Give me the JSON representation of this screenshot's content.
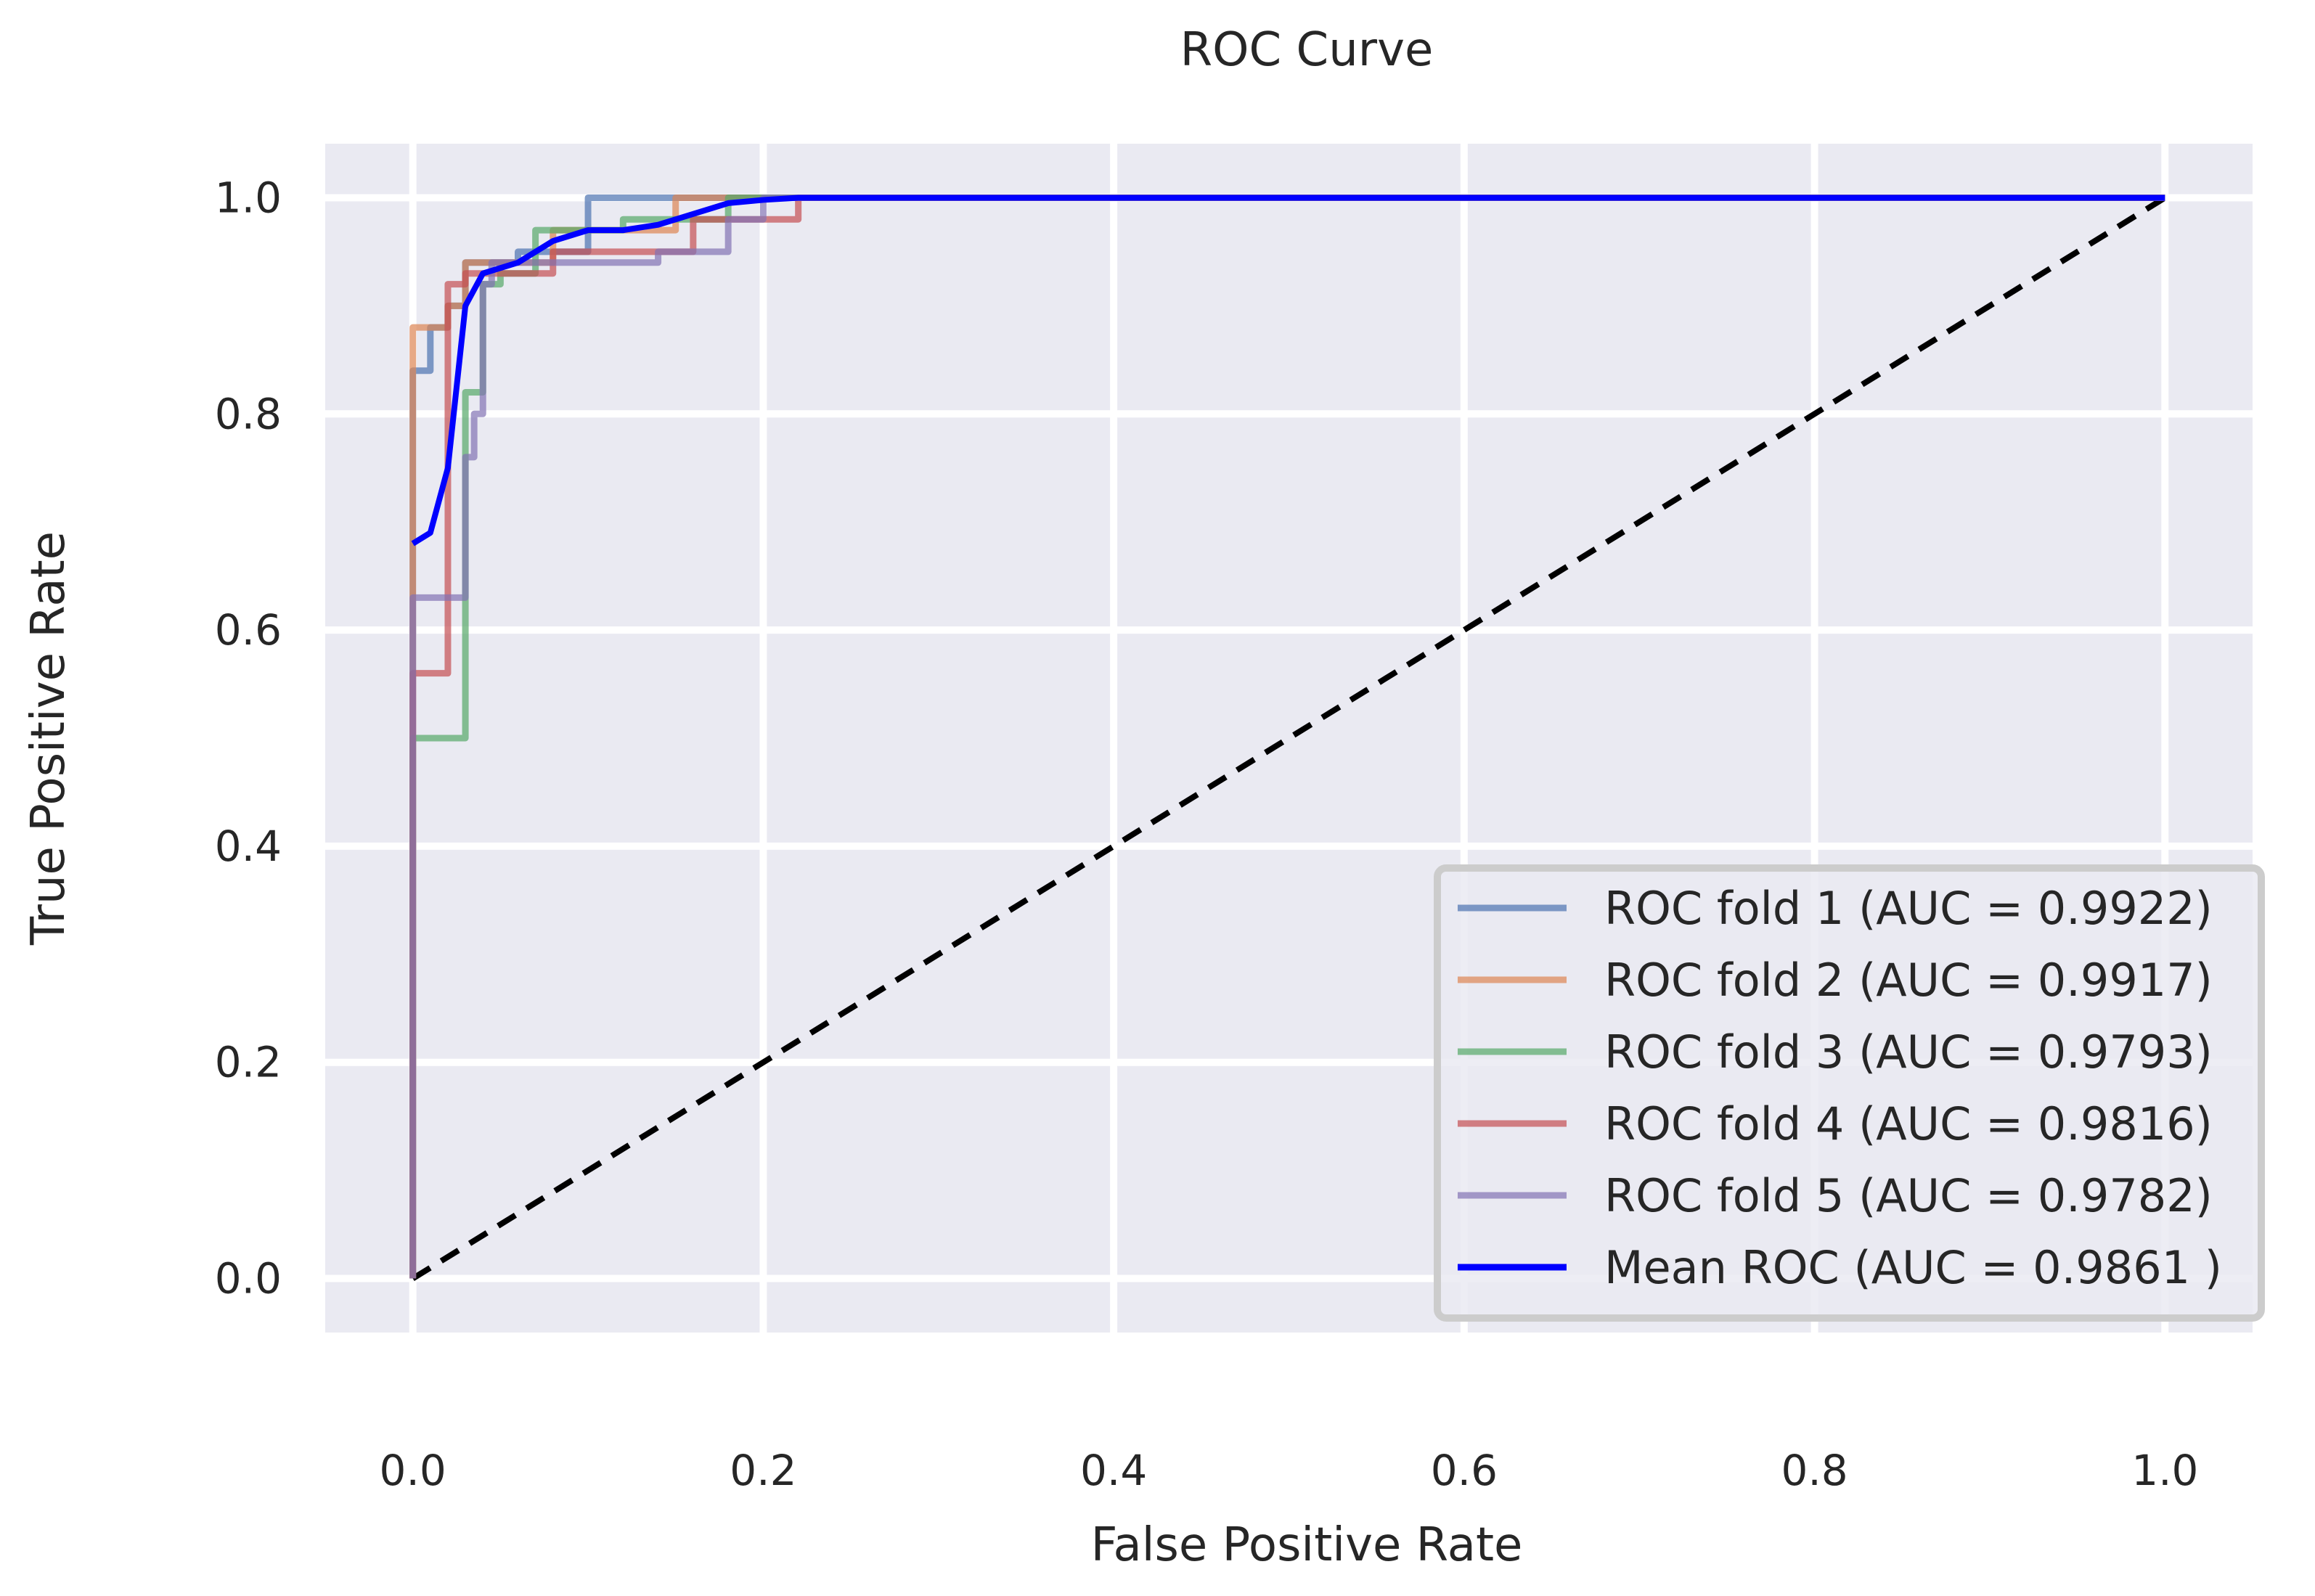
{
  "chart_data": {
    "type": "line",
    "title": "ROC Curve",
    "xlabel": "False Positive Rate",
    "ylabel": "True Positive Rate",
    "xlim": [
      -0.05,
      1.05
    ],
    "ylim": [
      -0.05,
      1.05
    ],
    "xticks": [
      0.0,
      0.2,
      0.4,
      0.6,
      0.8,
      1.0
    ],
    "yticks": [
      0.0,
      0.2,
      0.4,
      0.6,
      0.8,
      1.0
    ],
    "tick_labels_x": [
      "0.0",
      "0.2",
      "0.4",
      "0.6",
      "0.8",
      "1.0"
    ],
    "tick_labels_y": [
      "0.0",
      "0.2",
      "0.4",
      "0.6",
      "0.8",
      "1.0"
    ],
    "grid": true,
    "legend_position": "lower-right",
    "series": [
      {
        "name": "ROC fold 1 (AUC = 0.9922)",
        "color": "#4c72b0",
        "opacity": 0.7,
        "x": [
          0,
          0,
          0.01,
          0.01,
          0.02,
          0.02,
          0.03,
          0.03,
          0.06,
          0.06,
          0.1,
          0.1,
          1.0
        ],
        "y": [
          0,
          0.84,
          0.84,
          0.88,
          0.88,
          0.9,
          0.9,
          0.94,
          0.94,
          0.95,
          0.95,
          1.0,
          1.0
        ]
      },
      {
        "name": "ROC fold 2 (AUC = 0.9917)",
        "color": "#dd8452",
        "opacity": 0.7,
        "x": [
          0,
          0,
          0.02,
          0.02,
          0.03,
          0.03,
          0.08,
          0.08,
          0.15,
          0.15,
          1.0
        ],
        "y": [
          0,
          0.88,
          0.88,
          0.9,
          0.9,
          0.94,
          0.94,
          0.97,
          0.97,
          1.0,
          1.0
        ]
      },
      {
        "name": "ROC fold 3 (AUC = 0.9793)",
        "color": "#55a868",
        "opacity": 0.7,
        "x": [
          0,
          0,
          0.03,
          0.03,
          0.04,
          0.04,
          0.05,
          0.05,
          0.07,
          0.07,
          0.12,
          0.12,
          0.18,
          0.18,
          1.0
        ],
        "y": [
          0,
          0.5,
          0.5,
          0.82,
          0.82,
          0.92,
          0.92,
          0.93,
          0.93,
          0.97,
          0.97,
          0.98,
          0.98,
          1.0,
          1.0
        ]
      },
      {
        "name": "ROC fold 4 (AUC = 0.9816)",
        "color": "#c44e52",
        "opacity": 0.7,
        "x": [
          0,
          0,
          0.02,
          0.02,
          0.03,
          0.03,
          0.08,
          0.08,
          0.16,
          0.16,
          0.22,
          0.22,
          1.0
        ],
        "y": [
          0,
          0.56,
          0.56,
          0.92,
          0.92,
          0.93,
          0.93,
          0.95,
          0.95,
          0.98,
          0.98,
          1.0,
          1.0
        ]
      },
      {
        "name": "ROC fold 5 (AUC = 0.9782)",
        "color": "#8172b3",
        "opacity": 0.7,
        "x": [
          0,
          0,
          0.03,
          0.03,
          0.035,
          0.035,
          0.04,
          0.04,
          0.045,
          0.045,
          0.14,
          0.14,
          0.18,
          0.18,
          0.2,
          0.2,
          1.0
        ],
        "y": [
          0,
          0.63,
          0.63,
          0.76,
          0.76,
          0.8,
          0.8,
          0.92,
          0.92,
          0.94,
          0.94,
          0.95,
          0.95,
          0.98,
          0.98,
          1.0,
          1.0
        ]
      },
      {
        "name": "Mean ROC (AUC = 0.9861 )",
        "color": "#0000ff",
        "opacity": 1.0,
        "x": [
          0,
          0.01,
          0.02,
          0.03,
          0.04,
          0.06,
          0.08,
          0.1,
          0.12,
          0.14,
          0.16,
          0.18,
          0.2,
          0.22,
          1.0
        ],
        "y": [
          0.68,
          0.69,
          0.75,
          0.9,
          0.93,
          0.94,
          0.96,
          0.97,
          0.97,
          0.975,
          0.985,
          0.995,
          0.998,
          1.0,
          1.0
        ]
      }
    ],
    "reference_line": {
      "name": "chance",
      "color": "#000000",
      "style": "dashed",
      "x": [
        0,
        1
      ],
      "y": [
        0,
        1
      ]
    }
  }
}
